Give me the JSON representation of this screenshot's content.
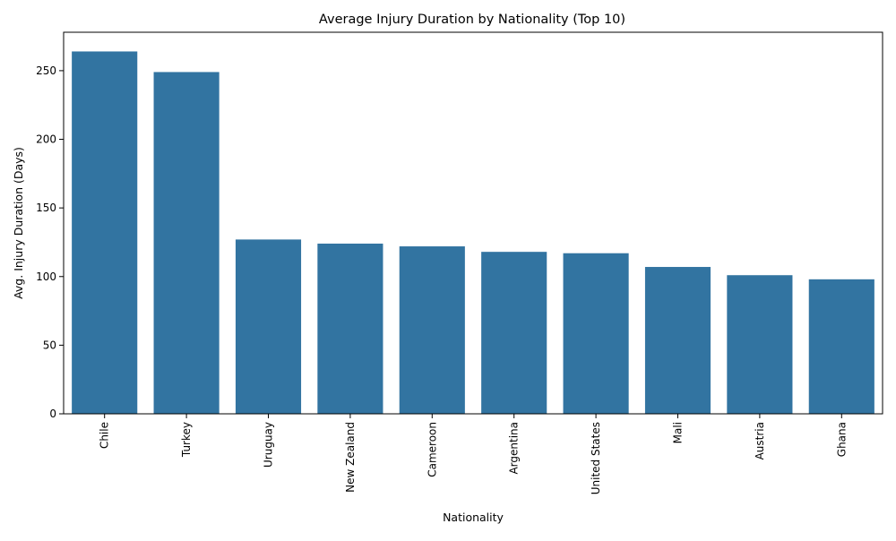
{
  "chart_data": {
    "type": "bar",
    "title": "Average Injury Duration by Nationality (Top 10)",
    "xlabel": "Nationality",
    "ylabel": "Avg. Injury Duration (Days)",
    "categories": [
      "Chile",
      "Turkey",
      "Uruguay",
      "New Zealand",
      "Cameroon",
      "Argentina",
      "United States",
      "Mali",
      "Austria",
      "Ghana"
    ],
    "values": [
      264,
      249,
      127,
      124,
      122,
      118,
      117,
      107,
      101,
      98
    ],
    "ylim": [
      0,
      278
    ],
    "yticks": [
      0,
      50,
      100,
      150,
      200,
      250
    ],
    "bar_color": "#3274a1",
    "grid": false,
    "legend": "none"
  }
}
